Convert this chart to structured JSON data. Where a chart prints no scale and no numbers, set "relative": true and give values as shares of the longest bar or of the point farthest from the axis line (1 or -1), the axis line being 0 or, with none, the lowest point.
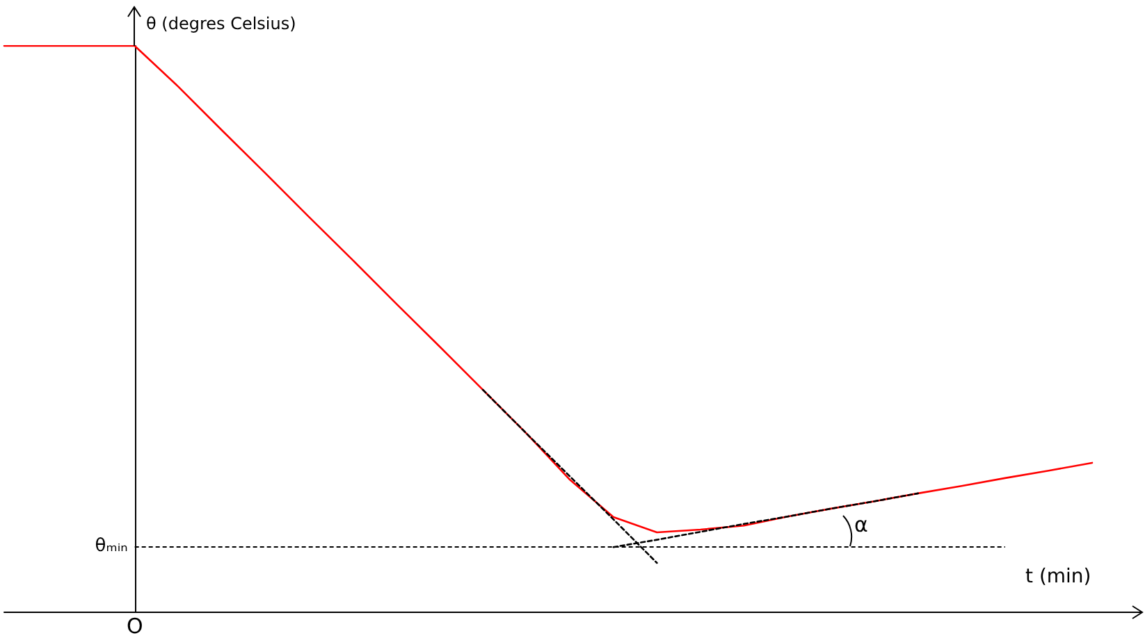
{
  "chart_data": {
    "type": "line",
    "relative": true,
    "xlabel": "t (min)",
    "ylabel": "θ (degres Celsius)",
    "categories": [
      null,
      null,
      null,
      null,
      null,
      null,
      null,
      null,
      null,
      null,
      null,
      null,
      null,
      null,
      null,
      null,
      null,
      null,
      null,
      null,
      null,
      null,
      null,
      null,
      null,
      null
    ],
    "series": [
      {
        "color": "#ff0000",
        "line_style": "solid",
        "values": [
          1,
          1,
          1,
          1,
          0.928,
          0.851,
          0.775,
          0.698,
          0.622,
          0.545,
          0.469,
          0.392,
          0.315,
          0.233,
          0.167,
          0.14,
          0.145,
          0.152,
          0.168,
          0.182,
          0.195,
          0.209,
          0.222,
          0.236,
          0.249,
          0.263
        ]
      },
      {
        "color": "#000000",
        "line_style": "dashed",
        "values": [
          null,
          null,
          null,
          null,
          null,
          null,
          null,
          null,
          null,
          null,
          null,
          0.392,
          0.315,
          0.239,
          0.163,
          0.086,
          null,
          null,
          null,
          null,
          null,
          null,
          null,
          null,
          null,
          null
        ]
      },
      {
        "color": "#000000",
        "line_style": "dashed",
        "values": [
          null,
          null,
          null,
          null,
          null,
          null,
          null,
          null,
          null,
          null,
          null,
          null,
          null,
          null,
          0.114,
          0.127,
          0.141,
          0.155,
          0.168,
          0.182,
          0.195,
          0.209,
          null,
          null,
          null,
          null
        ]
      }
    ],
    "ref_lines": [
      {
        "axis": "y",
        "value": 0.115,
        "label": "θₘᵢₙ",
        "color": "#000000",
        "line_style": "dashed"
      }
    ],
    "annotations": [
      "α",
      "O"
    ],
    "marker": "none",
    "grid": false
  }
}
